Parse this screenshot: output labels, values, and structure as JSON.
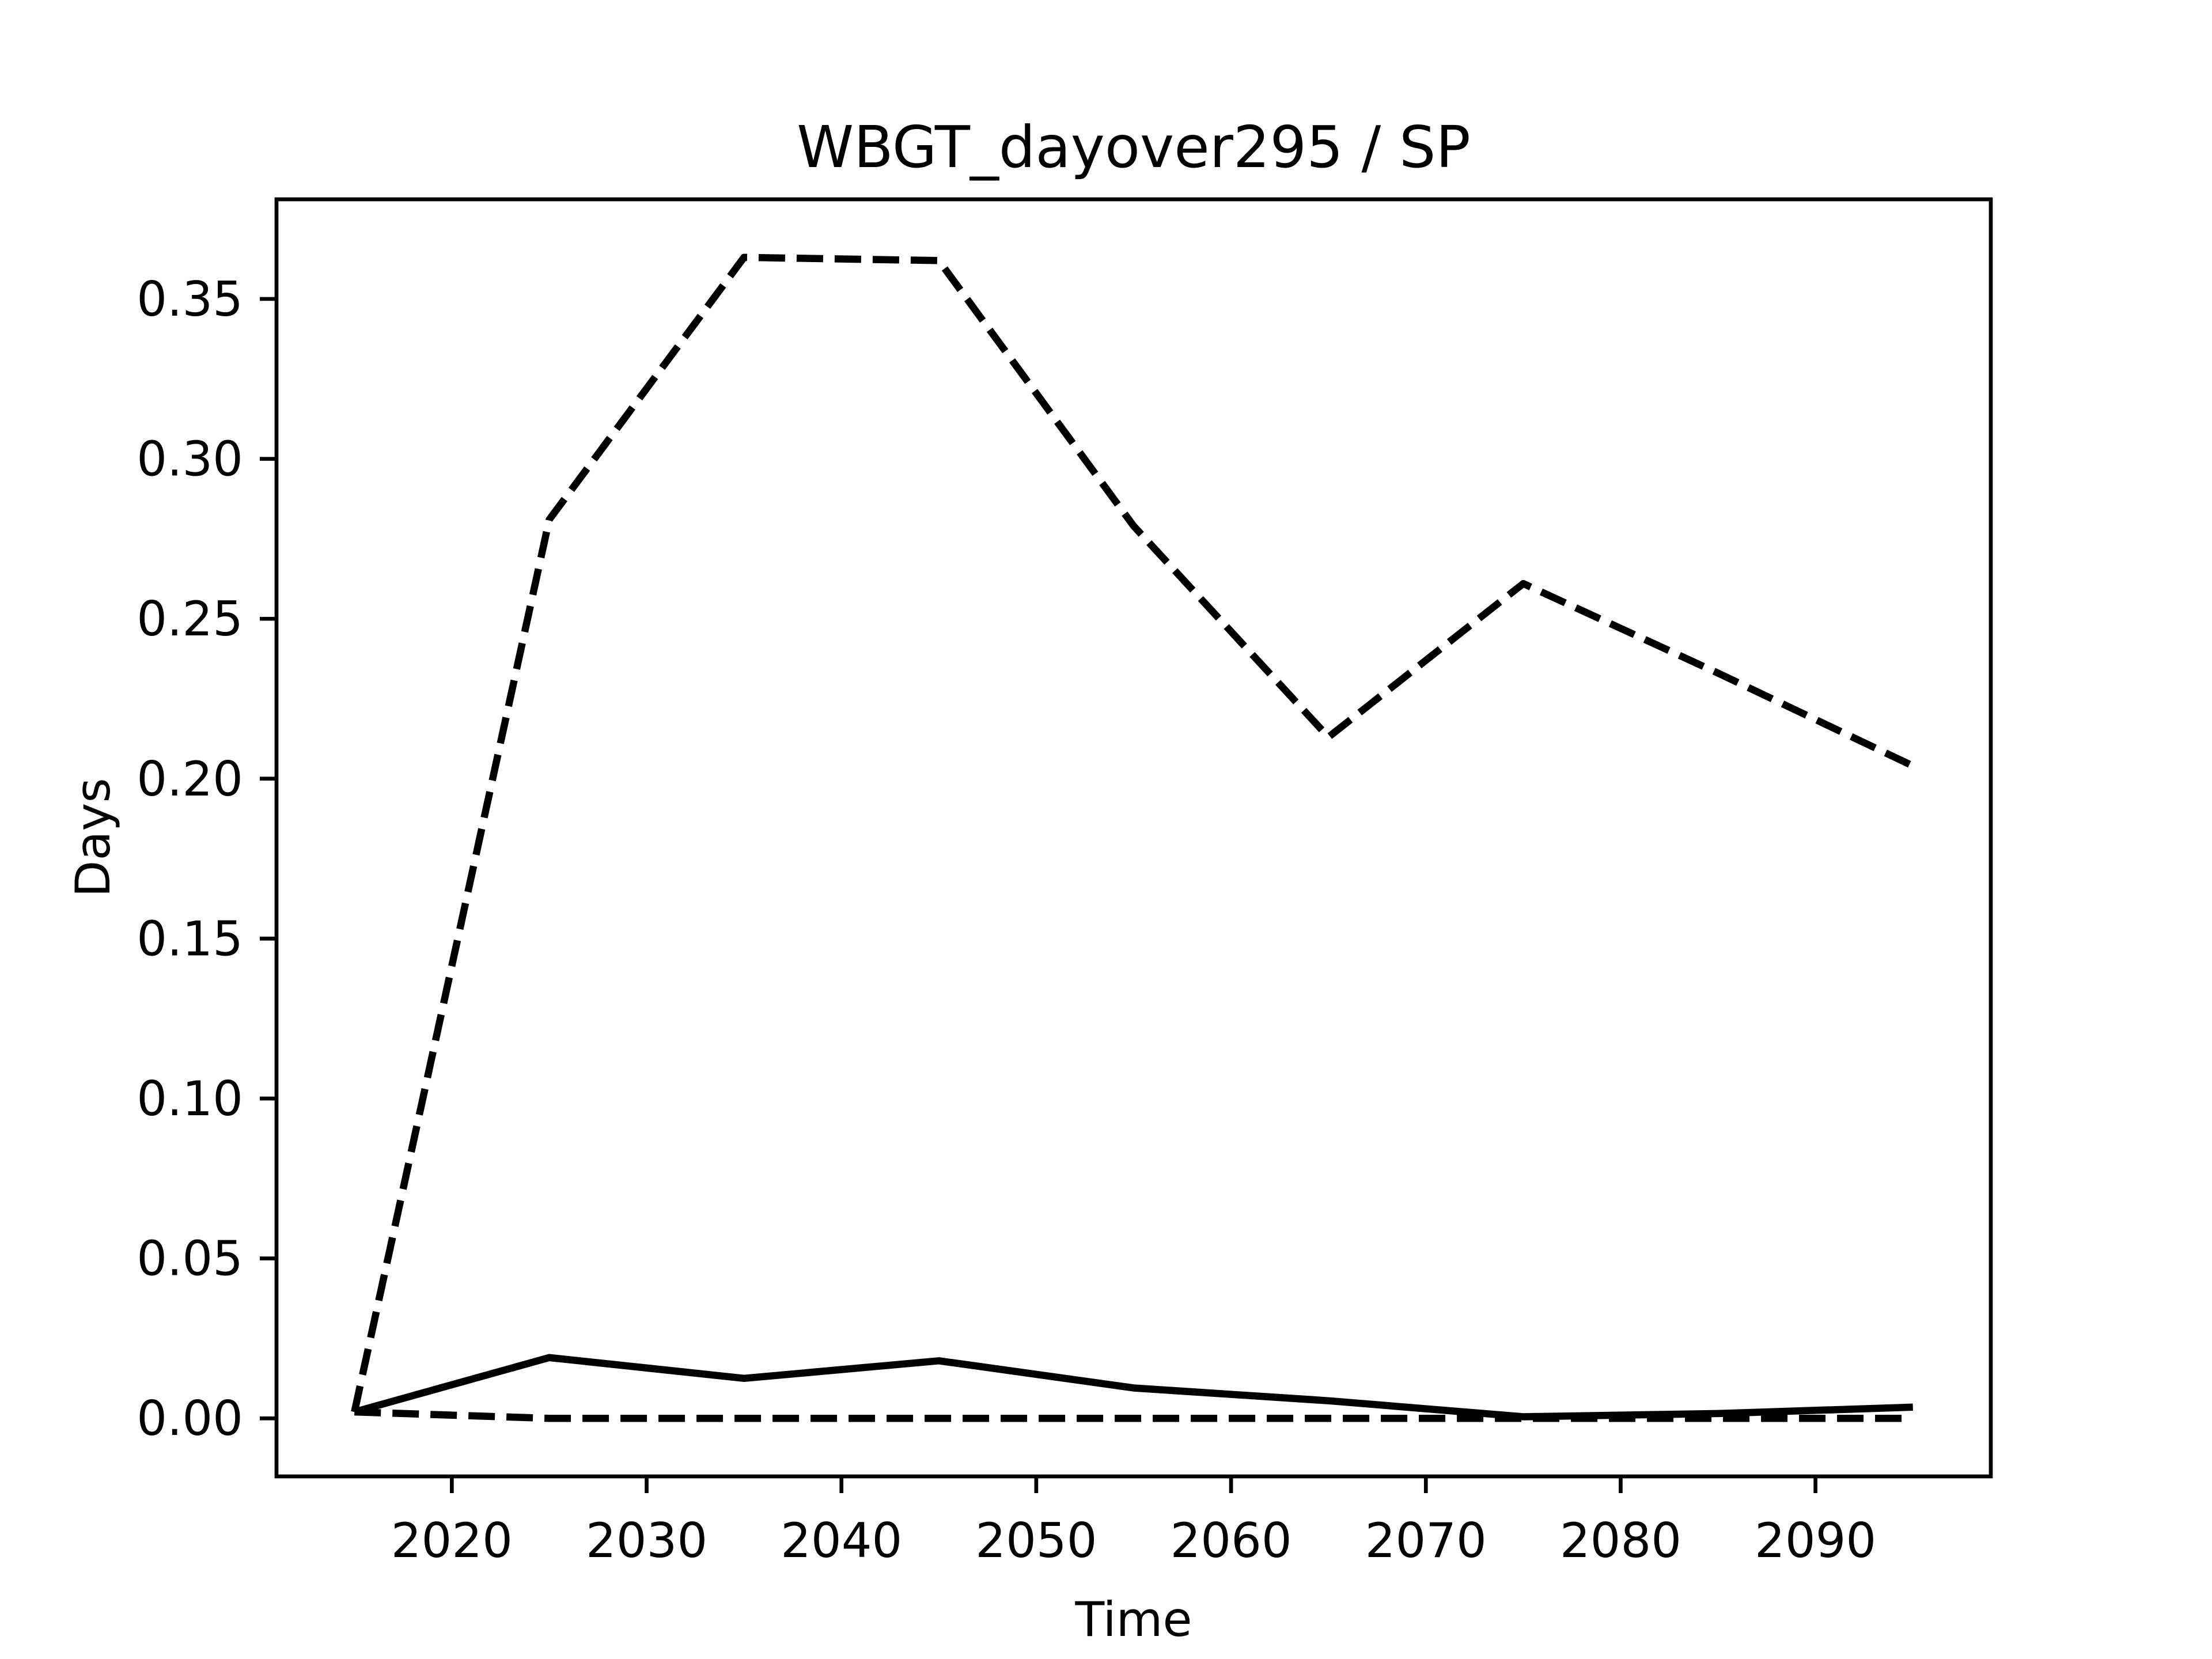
{
  "chart_data": {
    "type": "line",
    "title": "WBGT_dayover295 / SP",
    "xlabel": "Time",
    "ylabel": "Days",
    "x": [
      2015,
      2025,
      2035,
      2045,
      2055,
      2065,
      2075,
      2085,
      2095
    ],
    "series": [
      {
        "color": "#000000",
        "linestyle": "dashed",
        "values": [
          0.002,
          0.281,
          0.363,
          0.362,
          0.279,
          0.213,
          0.261,
          0.233,
          0.204
        ]
      },
      {
        "color": "#000000",
        "linestyle": "solid",
        "values": [
          0.002,
          0.019,
          0.0125,
          0.018,
          0.0095,
          0.0055,
          0.0005,
          0.0015,
          0.0035
        ]
      },
      {
        "color": "#000000",
        "linestyle": "dashed",
        "values": [
          0.002,
          0,
          0,
          0,
          0,
          0,
          0,
          0,
          0
        ]
      }
    ],
    "xlim": [
      2011,
      2099
    ],
    "xticks": [
      2020,
      2030,
      2040,
      2050,
      2060,
      2070,
      2080,
      2090
    ],
    "ylim": [
      -0.01815,
      0.38115
    ],
    "yticks": [
      {
        "value": 0,
        "label": "0.00"
      },
      {
        "value": 0.05,
        "label": "0.05"
      },
      {
        "value": 0.1,
        "label": "0.10"
      },
      {
        "value": 0.15,
        "label": "0.15"
      },
      {
        "value": 0.2,
        "label": "0.20"
      },
      {
        "value": 0.25,
        "label": "0.25"
      },
      {
        "value": 0.3,
        "label": "0.30"
      },
      {
        "value": 0.35,
        "label": "0.35"
      }
    ],
    "grid": false
  }
}
